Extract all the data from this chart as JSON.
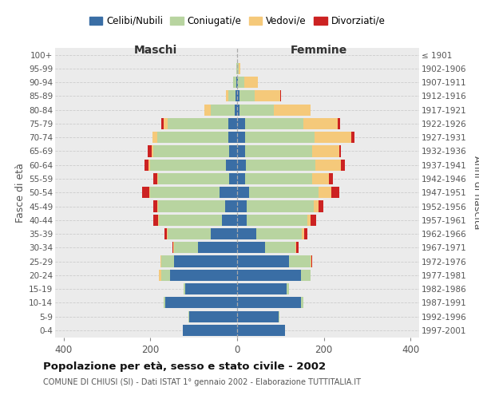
{
  "age_groups": [
    "0-4",
    "5-9",
    "10-14",
    "15-19",
    "20-24",
    "25-29",
    "30-34",
    "35-39",
    "40-44",
    "45-49",
    "50-54",
    "55-59",
    "60-64",
    "65-69",
    "70-74",
    "75-79",
    "80-84",
    "85-89",
    "90-94",
    "95-99",
    "100+"
  ],
  "birth_years": [
    "1997-2001",
    "1992-1996",
    "1987-1991",
    "1982-1986",
    "1977-1981",
    "1972-1976",
    "1967-1971",
    "1962-1966",
    "1957-1961",
    "1952-1956",
    "1947-1951",
    "1942-1946",
    "1937-1941",
    "1932-1936",
    "1927-1931",
    "1922-1926",
    "1917-1921",
    "1912-1916",
    "1907-1911",
    "1902-1906",
    "≤ 1901"
  ],
  "maschi": {
    "celibi": [
      125,
      110,
      165,
      120,
      155,
      145,
      90,
      60,
      35,
      28,
      40,
      18,
      25,
      18,
      20,
      20,
      5,
      3,
      2,
      0,
      0
    ],
    "coniugati": [
      0,
      2,
      5,
      3,
      20,
      30,
      55,
      100,
      145,
      155,
      160,
      165,
      175,
      175,
      165,
      140,
      55,
      18,
      8,
      2,
      0
    ],
    "vedovi": [
      0,
      0,
      0,
      0,
      5,
      2,
      2,
      2,
      2,
      2,
      2,
      2,
      5,
      5,
      10,
      10,
      15,
      5,
      0,
      0,
      0
    ],
    "divorziati": [
      0,
      0,
      0,
      0,
      0,
      0,
      2,
      5,
      12,
      8,
      18,
      8,
      8,
      8,
      0,
      5,
      0,
      0,
      0,
      0,
      0
    ]
  },
  "femmine": {
    "nubili": [
      110,
      95,
      148,
      115,
      148,
      120,
      65,
      45,
      22,
      22,
      28,
      18,
      20,
      18,
      18,
      18,
      5,
      5,
      2,
      0,
      0
    ],
    "coniugate": [
      0,
      2,
      5,
      5,
      22,
      50,
      70,
      105,
      140,
      155,
      160,
      155,
      160,
      155,
      160,
      135,
      80,
      35,
      15,
      3,
      0
    ],
    "vedove": [
      0,
      0,
      0,
      0,
      0,
      2,
      2,
      5,
      8,
      10,
      30,
      38,
      60,
      62,
      85,
      80,
      85,
      60,
      30,
      5,
      0
    ],
    "divorziate": [
      0,
      0,
      0,
      0,
      0,
      2,
      5,
      8,
      12,
      12,
      18,
      10,
      8,
      5,
      8,
      5,
      0,
      2,
      0,
      0,
      0
    ]
  },
  "colors": {
    "celibi": "#3a6ea5",
    "coniugati": "#b8d4a0",
    "vedovi": "#f5c97a",
    "divorziati": "#cc2222"
  },
  "xlim": 420,
  "title": "Popolazione per età, sesso e stato civile - 2002",
  "subtitle": "COMUNE DI CHIUSI (SI) - Dati ISTAT 1° gennaio 2002 - Elaborazione TUTTITALIA.IT",
  "ylabel_left": "Fasce di età",
  "ylabel_right": "Anni di nascita",
  "xlabel_maschi": "Maschi",
  "xlabel_femmine": "Femmine",
  "legend_labels": [
    "Celibi/Nubili",
    "Coniugati/e",
    "Vedovi/e",
    "Divorziati/e"
  ],
  "background_color": "#ffffff",
  "plot_bg_color": "#ebebeb",
  "bar_height": 0.82
}
